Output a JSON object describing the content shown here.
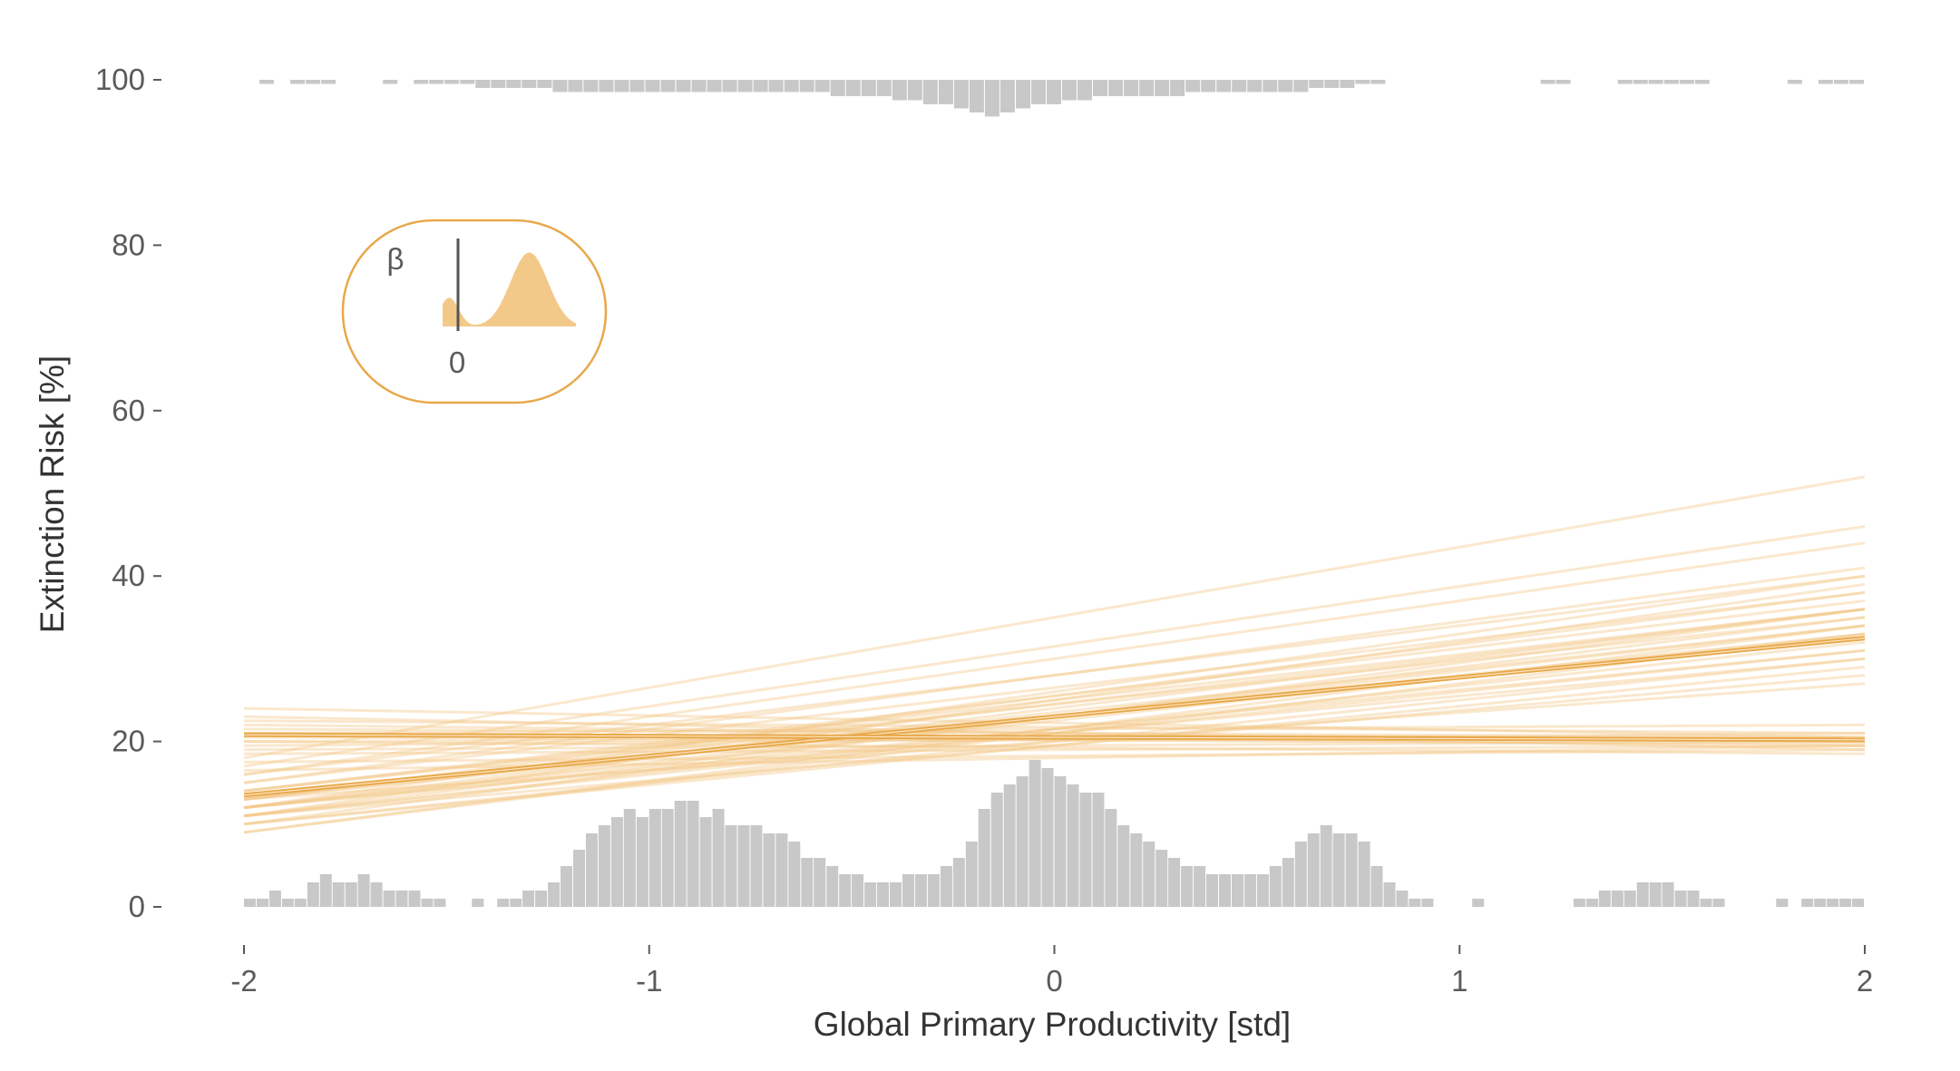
{
  "chart_data": {
    "type": "line",
    "xlabel": "Global Primary Productivity [std]",
    "ylabel": "Extinction Risk [%]",
    "xlim": [
      -2,
      2
    ],
    "ylim": [
      0,
      100
    ],
    "x_ticks": [
      "-2",
      "-1",
      "0",
      "1",
      "2"
    ],
    "y_ticks": [
      "0",
      "20",
      "40",
      "60",
      "80",
      "100"
    ],
    "grid": false,
    "legend": "none",
    "colors": {
      "line": "#e8a84a",
      "line_light": "#f3c98a",
      "rug": "#c8c8c8",
      "axis": "#5a5a5a"
    },
    "series": [
      {
        "x": [
          -2,
          2
        ],
        "y": [
          13.5,
          32.5
        ]
      },
      {
        "x": [
          -2,
          2
        ],
        "y": [
          20.8,
          20.2
        ]
      }
    ],
    "posterior_draws_positive": [
      [
        12,
        33
      ],
      [
        11,
        31
      ],
      [
        13,
        34
      ],
      [
        10,
        30
      ],
      [
        14,
        35
      ],
      [
        12,
        36
      ],
      [
        11,
        32
      ],
      [
        13,
        38
      ],
      [
        10,
        29
      ],
      [
        9,
        34
      ],
      [
        12,
        40
      ],
      [
        14,
        37
      ],
      [
        11,
        28
      ],
      [
        13,
        33
      ],
      [
        12,
        31
      ],
      [
        10,
        36
      ],
      [
        15,
        41
      ],
      [
        11,
        35
      ],
      [
        16,
        44
      ],
      [
        17,
        46
      ],
      [
        18,
        52
      ],
      [
        13,
        27
      ],
      [
        12,
        30
      ],
      [
        11,
        39
      ],
      [
        14,
        36
      ],
      [
        9,
        33
      ],
      [
        15,
        38
      ],
      [
        12,
        34
      ],
      [
        13,
        36
      ],
      [
        16,
        40
      ]
    ],
    "posterior_draws_flat": [
      [
        20,
        20.5
      ],
      [
        21,
        19.5
      ],
      [
        22,
        20
      ],
      [
        19.5,
        21
      ],
      [
        23,
        19
      ],
      [
        21.5,
        20.5
      ],
      [
        20.5,
        19.8
      ],
      [
        22.5,
        21
      ],
      [
        19,
        20
      ],
      [
        24,
        20.5
      ],
      [
        21,
        22
      ],
      [
        20,
        18.5
      ],
      [
        18.5,
        19.5
      ],
      [
        17.5,
        19
      ],
      [
        16.5,
        19.5
      ]
    ],
    "rug_bottom": {
      "bin_edges": [
        -2,
        2
      ],
      "counts": [
        1,
        1,
        2,
        1,
        1,
        3,
        4,
        3,
        3,
        4,
        3,
        2,
        2,
        2,
        1,
        1,
        0,
        0,
        1,
        0,
        1,
        1,
        2,
        2,
        3,
        5,
        7,
        9,
        10,
        11,
        12,
        11,
        12,
        12,
        13,
        13,
        11,
        12,
        10,
        10,
        10,
        9,
        9,
        8,
        6,
        6,
        5,
        4,
        4,
        3,
        3,
        3,
        4,
        4,
        4,
        5,
        6,
        8,
        12,
        14,
        15,
        16,
        18,
        17,
        16,
        15,
        14,
        14,
        12,
        10,
        9,
        8,
        7,
        6,
        5,
        5,
        4,
        4,
        4,
        4,
        4,
        5,
        6,
        8,
        9,
        10,
        9,
        9,
        8,
        5,
        3,
        2,
        1,
        1,
        0,
        0,
        0,
        1,
        0,
        0,
        0,
        0,
        0,
        0,
        0,
        1,
        1,
        2,
        2,
        2,
        3,
        3,
        3,
        2,
        2,
        1,
        1,
        0,
        0,
        0,
        0,
        1,
        0,
        1,
        1,
        1,
        1,
        1
      ]
    },
    "rug_top": {
      "bin_edges": [
        -2,
        2
      ],
      "counts": [
        0,
        1,
        0,
        1,
        1,
        1,
        0,
        0,
        0,
        1,
        0,
        1,
        1,
        1,
        1,
        2,
        2,
        2,
        2,
        2,
        3,
        3,
        3,
        3,
        3,
        3,
        3,
        3,
        3,
        3,
        3,
        3,
        3,
        3,
        3,
        3,
        3,
        3,
        4,
        4,
        4,
        4,
        5,
        5,
        6,
        6,
        7,
        8,
        9,
        8,
        7,
        6,
        6,
        5,
        5,
        4,
        4,
        4,
        4,
        4,
        4,
        3,
        3,
        3,
        3,
        3,
        3,
        3,
        3,
        2,
        2,
        2,
        1,
        1,
        0,
        0,
        0,
        0,
        0,
        0,
        0,
        0,
        0,
        0,
        1,
        1,
        0,
        0,
        0,
        1,
        1,
        1,
        1,
        1,
        1,
        0,
        0,
        0,
        0,
        0,
        1,
        0,
        1,
        1,
        1
      ]
    },
    "inset": {
      "label": "β",
      "tick": "0",
      "peaks": [
        {
          "center": 0.05,
          "height": 0.33,
          "sd": 0.07
        },
        {
          "center": 0.65,
          "height": 0.85,
          "sd": 0.14
        }
      ]
    }
  }
}
